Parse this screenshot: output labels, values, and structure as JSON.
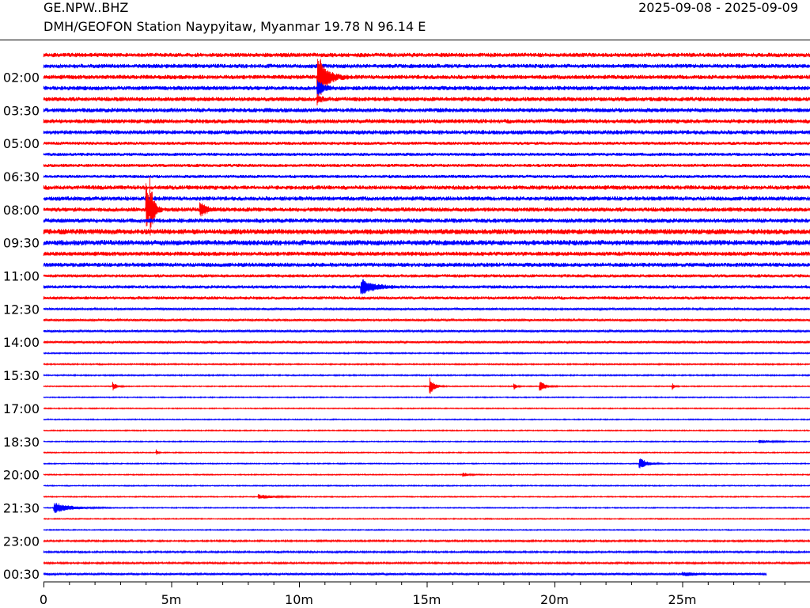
{
  "header": {
    "station_code": "GE.NPW..BHZ",
    "date_range": "2025-09-08 - 2025-09-09",
    "station_description": "DMH/GEOFON Station Naypyitaw, Myanmar  19.78 N 96.14 E"
  },
  "chart_data": {
    "type": "line",
    "title": "",
    "xlabel": "",
    "ylabel": "",
    "x_range_minutes": [
      0,
      30
    ],
    "x_ticks": [
      {
        "value": 0,
        "label": "0"
      },
      {
        "value": 5,
        "label": "5m"
      },
      {
        "value": 10,
        "label": "10m"
      },
      {
        "value": 15,
        "label": "15m"
      },
      {
        "value": 20,
        "label": "20m"
      },
      {
        "value": 25,
        "label": "25m"
      }
    ],
    "line_interval_minutes": 30,
    "line_count": 48,
    "line_colors": [
      "#ff0000",
      "#0000ff"
    ],
    "y_labels": [
      {
        "line": 2,
        "label": "02:00"
      },
      {
        "line": 5,
        "label": "03:30"
      },
      {
        "line": 8,
        "label": "05:00"
      },
      {
        "line": 11,
        "label": "06:30"
      },
      {
        "line": 14,
        "label": "08:00"
      },
      {
        "line": 17,
        "label": "09:30"
      },
      {
        "line": 20,
        "label": "11:00"
      },
      {
        "line": 23,
        "label": "12:30"
      },
      {
        "line": 26,
        "label": "14:00"
      },
      {
        "line": 29,
        "label": "15:30"
      },
      {
        "line": 32,
        "label": "17:00"
      },
      {
        "line": 35,
        "label": "18:30"
      },
      {
        "line": 38,
        "label": "20:00"
      },
      {
        "line": 41,
        "label": "21:30"
      },
      {
        "line": 44,
        "label": "23:00"
      },
      {
        "line": 47,
        "label": "00:30"
      }
    ],
    "noise_levels": [
      2,
      2,
      2,
      2,
      2,
      2,
      2,
      2,
      1.5,
      1.5,
      1.5,
      1.5,
      2,
      2,
      2,
      2,
      2.5,
      2.5,
      2,
      2,
      1.5,
      1.5,
      1.5,
      1,
      1,
      1,
      1,
      0.6,
      0.6,
      0.6,
      0.5,
      0.5,
      0.5,
      0.5,
      0.5,
      0.5,
      0.5,
      0.5,
      0.5,
      0.5,
      0.5,
      0.5,
      0.5,
      0.5,
      0.8,
      0.8,
      0.8,
      1.0
    ],
    "line_end_minutes": [
      {
        "line": 47,
        "end": 28.3
      }
    ],
    "events": [
      {
        "line": 2,
        "minute": 10.7,
        "amplitude": 36,
        "duration_min": 1.2
      },
      {
        "line": 3,
        "minute": 10.7,
        "amplitude": 12,
        "duration_min": 0.8
      },
      {
        "line": 4,
        "minute": 10.7,
        "amplitude": 6,
        "duration_min": 0.6
      },
      {
        "line": 14,
        "minute": 4.0,
        "amplitude": 40,
        "duration_min": 0.5
      },
      {
        "line": 14,
        "minute": 4.15,
        "amplitude": 40,
        "duration_min": 0.5
      },
      {
        "line": 14,
        "minute": 6.1,
        "amplitude": 10,
        "duration_min": 0.9
      },
      {
        "line": 21,
        "minute": 12.4,
        "amplitude": 10,
        "duration_min": 1.8
      },
      {
        "line": 30,
        "minute": 15.1,
        "amplitude": 12,
        "duration_min": 0.7
      },
      {
        "line": 30,
        "minute": 19.4,
        "amplitude": 8,
        "duration_min": 0.8
      },
      {
        "line": 30,
        "minute": 18.4,
        "amplitude": 5,
        "duration_min": 0.4
      },
      {
        "line": 30,
        "minute": 2.7,
        "amplitude": 6,
        "duration_min": 0.6
      },
      {
        "line": 30,
        "minute": 24.6,
        "amplitude": 6,
        "duration_min": 0.3
      },
      {
        "line": 36,
        "minute": 4.4,
        "amplitude": 6,
        "duration_min": 0.2
      },
      {
        "line": 37,
        "minute": 23.3,
        "amplitude": 9,
        "duration_min": 1.0
      },
      {
        "line": 38,
        "minute": 16.4,
        "amplitude": 3,
        "duration_min": 0.8
      },
      {
        "line": 40,
        "minute": 8.4,
        "amplitude": 3,
        "duration_min": 2.0
      },
      {
        "line": 41,
        "minute": 0.4,
        "amplitude": 7,
        "duration_min": 2.4
      },
      {
        "line": 35,
        "minute": 28.0,
        "amplitude": 2,
        "duration_min": 2.0
      },
      {
        "line": 47,
        "minute": 25.0,
        "amplitude": 2,
        "duration_min": 3.0
      }
    ]
  }
}
